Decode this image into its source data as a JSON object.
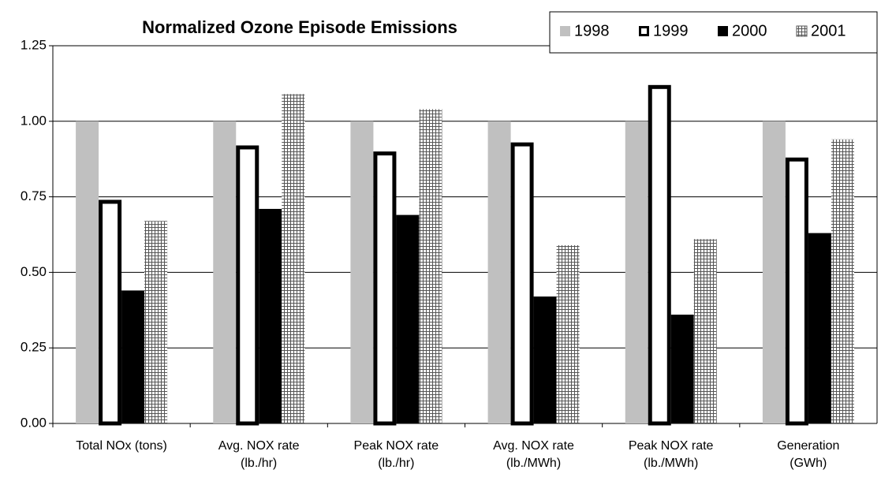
{
  "chart_data": {
    "type": "bar",
    "title": "Normalized Ozone Episode Emissions",
    "categories": [
      "Total NOx (tons)",
      "Avg. NOX rate\n(lb./hr)",
      "Peak NOX rate\n(lb./hr)",
      "Avg. NOX rate\n(lb./MWh)",
      "Peak NOX rate\n(lb./MWh)",
      "Generation\n(GWh)"
    ],
    "series": [
      {
        "name": "1998",
        "color": "#c0c0c0",
        "values": [
          1.0,
          1.0,
          1.0,
          1.0,
          1.0,
          1.0
        ]
      },
      {
        "name": "1999",
        "color": "#ffffff",
        "stroke": "#000000",
        "values": [
          0.74,
          0.92,
          0.9,
          0.93,
          1.12,
          0.88
        ]
      },
      {
        "name": "2000",
        "color": "#000000",
        "values": [
          0.44,
          0.71,
          0.69,
          0.42,
          0.36,
          0.63
        ]
      },
      {
        "name": "2001",
        "color": "#e8e8e8",
        "pattern": "crosshatch",
        "values": [
          0.67,
          1.09,
          1.04,
          0.59,
          0.61,
          0.94
        ]
      }
    ],
    "ylim": [
      0,
      1.25
    ],
    "yticks": [
      {
        "value": 0,
        "label": "0.00"
      },
      0.25,
      {
        "value": 0.5,
        "label": "0.50"
      },
      0.75,
      {
        "value": 1,
        "label": "1.00"
      },
      1.25
    ],
    "grid": true,
    "legend": "top-right"
  }
}
